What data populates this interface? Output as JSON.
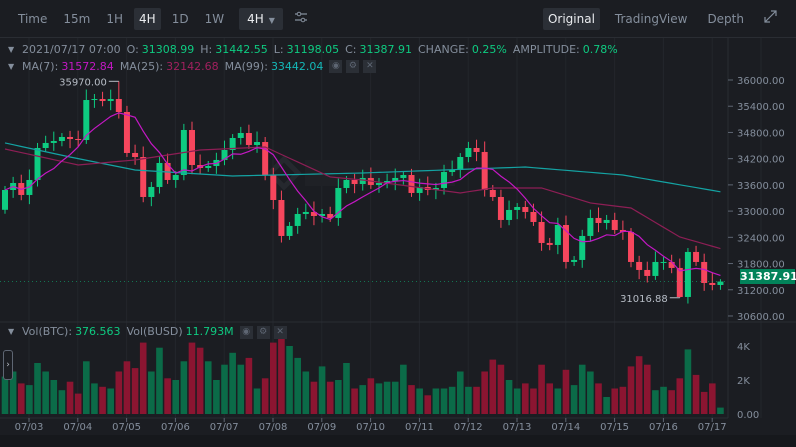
{
  "toolbar": {
    "intervals": [
      {
        "label": "Time"
      },
      {
        "label": "15m"
      },
      {
        "label": "1H"
      },
      {
        "label": "4H",
        "active": true
      },
      {
        "label": "1D"
      },
      {
        "label": "1W"
      }
    ],
    "interval_dropdown": "4H",
    "settings_icon": "sliders-icon",
    "views": [
      {
        "label": "Original",
        "active": true
      },
      {
        "label": "TradingView"
      },
      {
        "label": "Depth"
      }
    ],
    "expand_icon": "expand-icon"
  },
  "legend": {
    "datetime": "2021/07/17 07:00",
    "o_label": "O:",
    "o": "31308.99",
    "h_label": "H:",
    "h": "31442.55",
    "l_label": "L:",
    "l": "31198.05",
    "c_label": "C:",
    "c": "31387.91",
    "change_label": "CHANGE:",
    "change": "0.25%",
    "amp_label": "AMPLITUDE:",
    "amplitude": "0.78%",
    "ma7_label": "MA(7):",
    "ma7": "31572.84",
    "ma25_label": "MA(25):",
    "ma25": "32142.68",
    "ma99_label": "MA(99):",
    "ma99": "33442.04",
    "vol_btc_label": "Vol(BTC):",
    "vol_btc": "376.563",
    "vol_busd_label": "Vol(BUSD)",
    "vol_busd": "11.793M"
  },
  "colors": {
    "up": "#0ecb81",
    "down": "#f6465d",
    "vol_up": "#0b6b48",
    "vol_down": "#8b1531",
    "ma7": "#c418c4",
    "ma25": "#8d1e55",
    "ma99": "#14a3a3",
    "bg": "#1b1d22"
  },
  "chart_data": {
    "type": "candlestick",
    "price_ticks": [
      "36000.00",
      "35400.00",
      "34800.00",
      "34200.00",
      "33600.00",
      "33000.00",
      "32400.00",
      "31800.00",
      "31200.00",
      "30600.00"
    ],
    "volume_ticks": [
      "4K",
      "2K",
      "0.00"
    ],
    "date_ticks": [
      "07/03",
      "07/04",
      "07/05",
      "07/06",
      "07/07",
      "07/08",
      "07/09",
      "07/10",
      "07/11",
      "07/12",
      "07/13",
      "07/14",
      "07/15",
      "07/16",
      "07/17"
    ],
    "high_marker": "35970.00",
    "low_marker": "31016.88",
    "last_price": "31387.91",
    "closes": [
      33483,
      33643,
      33369,
      33712,
      34444,
      34559,
      34604,
      34696,
      34650,
      34627,
      35542,
      35565,
      35519,
      35565,
      35268,
      34330,
      34238,
      33323,
      33552,
      34101,
      33712,
      33826,
      34856,
      34055,
      33987,
      34032,
      34170,
      34398,
      34673,
      34787,
      34513,
      34581,
      33826,
      33254,
      32431,
      32660,
      32934,
      32980,
      32888,
      32934,
      32843,
      33529,
      33712,
      33620,
      33758,
      33598,
      33643,
      33689,
      33758,
      33826,
      33415,
      33552,
      33483,
      33529,
      33895,
      33941,
      34238,
      34444,
      34353,
      33483,
      33323,
      32797,
      33026,
      33094,
      32980,
      32751,
      32271,
      32225,
      32682,
      31836,
      31882,
      32431,
      32843,
      32728,
      32797,
      32568,
      32522,
      31836,
      31653,
      31516,
      31836,
      31836,
      31699,
      31035,
      32065,
      31836,
      31355,
      31309,
      31387.91
    ],
    "first_open": 33030,
    "highs_extra": {
      "14": 35970,
      "83": 31016.88,
      "88": 31442.55
    },
    "volumes_k": [
      2.2,
      2.5,
      1.8,
      1.7,
      3.0,
      2.5,
      2.0,
      1.4,
      1.9,
      1.2,
      3.1,
      1.8,
      1.6,
      1.5,
      2.5,
      3.1,
      2.7,
      4.2,
      2.5,
      3.9,
      2.1,
      2.0,
      3.1,
      4.2,
      3.9,
      3.1,
      2.0,
      2.9,
      3.6,
      2.9,
      3.3,
      1.5,
      2.1,
      4.2,
      4.6,
      4.0,
      3.3,
      2.5,
      1.9,
      2.8,
      1.9,
      2.0,
      3.0,
      1.5,
      1.7,
      2.1,
      1.8,
      1.9,
      1.9,
      2.9,
      1.7,
      1.5,
      1.1,
      1.5,
      1.5,
      1.6,
      2.5,
      1.6,
      1.6,
      2.5,
      3.2,
      2.9,
      2.0,
      1.5,
      1.8,
      1.5,
      2.9,
      1.8,
      1.5,
      2.6,
      1.7,
      2.9,
      2.5,
      1.8,
      1.0,
      1.5,
      1.6,
      2.8,
      3.4,
      2.9,
      1.4,
      1.6,
      1.4,
      2.1,
      3.8,
      2.3,
      1.3,
      1.8,
      0.377
    ],
    "ma25_points": [
      [
        0,
        34421
      ],
      [
        9,
        34055
      ],
      [
        16,
        34170
      ],
      [
        24,
        34398
      ],
      [
        32,
        34467
      ],
      [
        40,
        33781
      ],
      [
        44,
        33712
      ],
      [
        56,
        33415
      ],
      [
        60,
        33529
      ],
      [
        66,
        33529
      ],
      [
        72,
        33186
      ],
      [
        77,
        33071
      ],
      [
        83,
        32408
      ],
      [
        88,
        32142.68
      ]
    ],
    "ma99_points": [
      [
        0,
        34559
      ],
      [
        8,
        34238
      ],
      [
        16,
        33941
      ],
      [
        28,
        33804
      ],
      [
        44,
        33872
      ],
      [
        64,
        34009
      ],
      [
        76,
        33826
      ],
      [
        88,
        33442.04
      ]
    ],
    "ylim": [
      30400,
      36200
    ],
    "volume_ylim": [
      0,
      4.4
    ]
  }
}
